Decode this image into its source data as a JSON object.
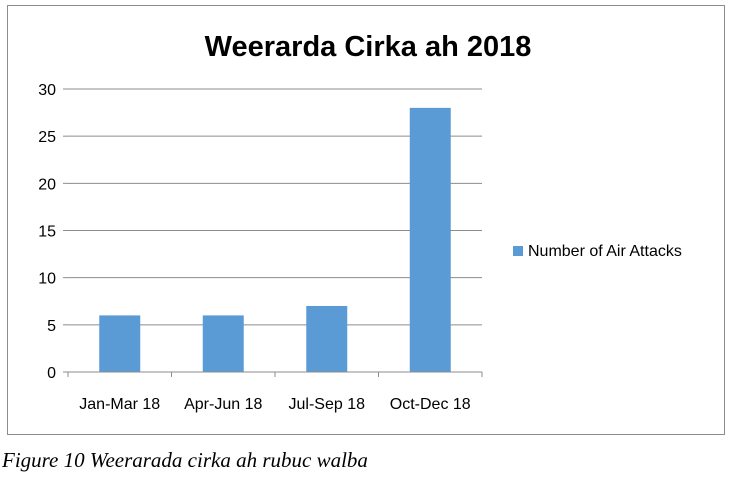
{
  "chart_data": {
    "type": "bar",
    "title": "Weerarda Cirka ah 2018",
    "categories": [
      "Jan-Mar 18",
      "Apr-Jun 18",
      "Jul-Sep 18",
      "Oct-Dec 18"
    ],
    "series": [
      {
        "name": "Number of Air Attacks",
        "values": [
          6,
          6,
          7,
          28
        ],
        "color": "#5b9bd5"
      }
    ],
    "ylim": [
      0,
      30
    ],
    "yticks": [
      "0",
      "5",
      "10",
      "15",
      "20",
      "25",
      "30"
    ],
    "xlabel": "",
    "ylabel": "",
    "grid": true,
    "legend_position": "right"
  },
  "caption": "Figure 10 Weerarada cirka ah rubuc walba"
}
